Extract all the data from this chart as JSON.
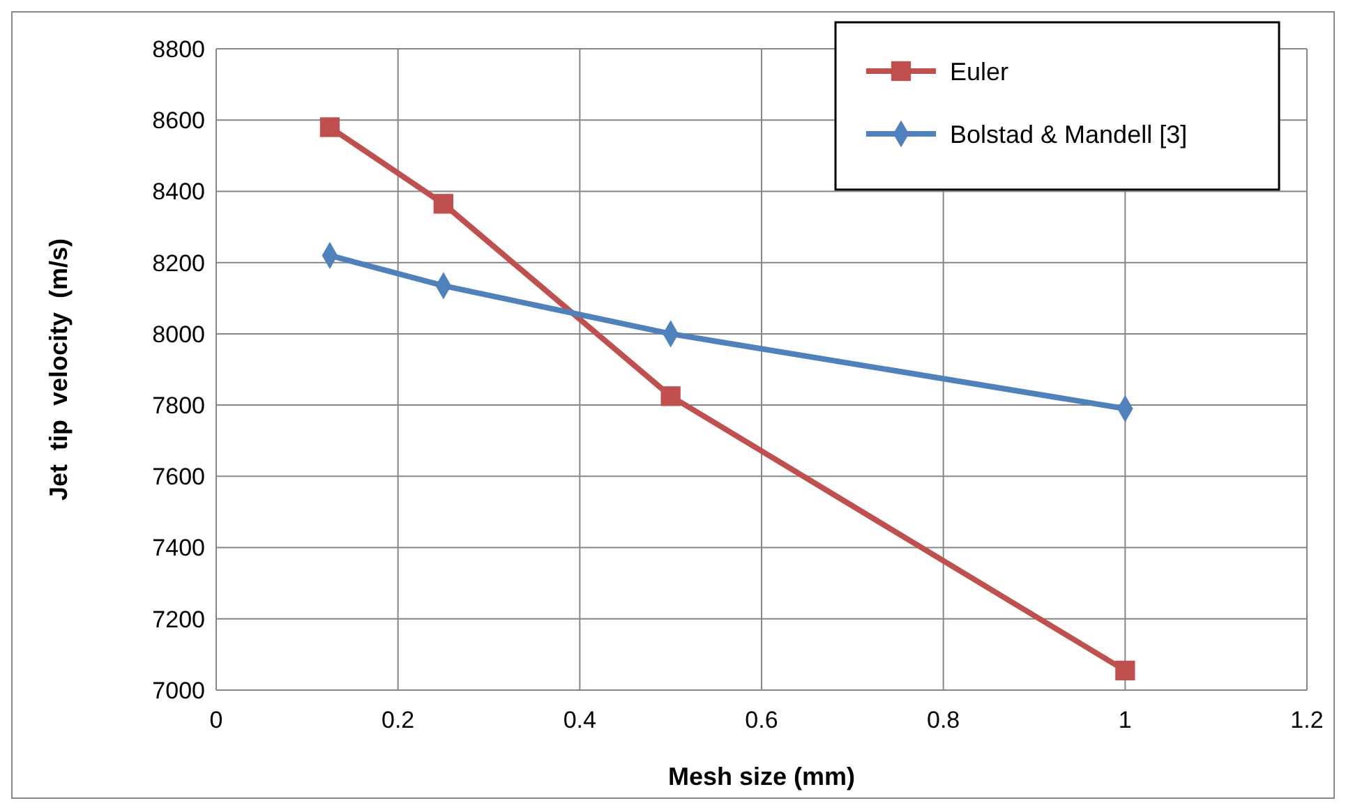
{
  "chart_data": {
    "type": "line",
    "xlabel": "Mesh size (mm)",
    "ylabel": "Jet  tip  velocity  (m/s)",
    "xlim": [
      0,
      1.2
    ],
    "xticks": [
      0,
      0.2,
      0.4,
      0.6,
      0.8,
      1,
      1.2
    ],
    "ylim": [
      7000,
      8800
    ],
    "yticks": [
      7000,
      7200,
      7400,
      7600,
      7800,
      8000,
      8200,
      8400,
      8600,
      8800
    ],
    "grid": true,
    "legend": "top right",
    "line_style": "solid",
    "series": [
      {
        "name": "Euler",
        "color": "#c0504d",
        "marker": "square",
        "x": [
          0.125,
          0.25,
          0.5,
          1
        ],
        "values": [
          8580,
          8365,
          7825,
          7055
        ]
      },
      {
        "name": "Bolstad & Mandell [3]",
        "color": "#4f81bd",
        "marker": "diamond",
        "x": [
          0.125,
          0.25,
          0.5,
          1
        ],
        "values": [
          8220,
          8135,
          8000,
          7790
        ]
      }
    ]
  }
}
